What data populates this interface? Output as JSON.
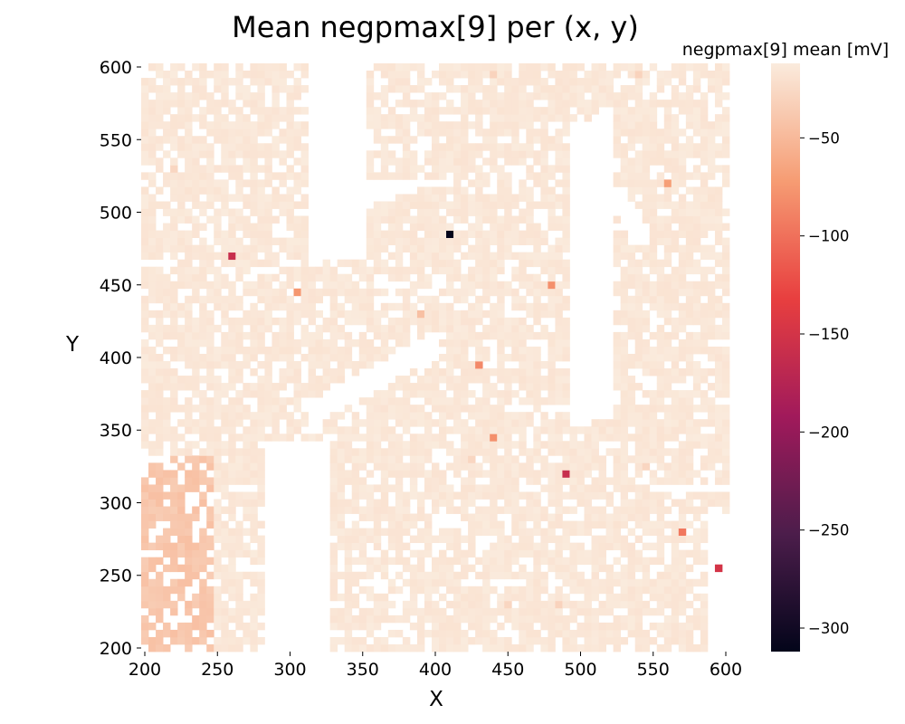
{
  "chart_data": {
    "type": "heatmap",
    "title": "Mean negpmax[9] per (x, y)",
    "xlabel": "X",
    "ylabel": "Y",
    "xlim": [
      200,
      600
    ],
    "ylim": [
      200,
      600
    ],
    "x_ticks": [
      "200",
      "250",
      "300",
      "350",
      "400",
      "450",
      "500",
      "550",
      "600"
    ],
    "y_ticks": [
      "200",
      "250",
      "300",
      "350",
      "400",
      "450",
      "500",
      "550",
      "600"
    ],
    "cell_size": 5,
    "colorbar": {
      "label": "negpmax[9] mean [mV]",
      "min": -312,
      "max": -12,
      "ticks": [
        "−50",
        "−100",
        "−150",
        "−200",
        "−250",
        "−300"
      ],
      "tick_values": [
        -50,
        -100,
        -150,
        -200,
        -250,
        -300
      ],
      "colormap": "rocket",
      "stops": [
        "#03051a",
        "#4c1d4b",
        "#a11a5b",
        "#e83f3f",
        "#f69c73",
        "#faebdd"
      ]
    },
    "background_value": -15,
    "regions": [
      {
        "name": "lower-left",
        "x_range": [
          200,
          245
        ],
        "y_range": [
          200,
          330
        ],
        "value": -40
      }
    ],
    "outliers": [
      {
        "x": 410,
        "y": 485,
        "value": -312
      },
      {
        "x": 260,
        "y": 470,
        "value": -160
      },
      {
        "x": 490,
        "y": 320,
        "value": -160
      },
      {
        "x": 595,
        "y": 255,
        "value": -150
      },
      {
        "x": 570,
        "y": 280,
        "value": -95
      },
      {
        "x": 560,
        "y": 520,
        "value": -70
      },
      {
        "x": 305,
        "y": 445,
        "value": -75
      },
      {
        "x": 480,
        "y": 450,
        "value": -80
      },
      {
        "x": 430,
        "y": 395,
        "value": -85
      },
      {
        "x": 440,
        "y": 345,
        "value": -80
      },
      {
        "x": 390,
        "y": 430,
        "value": -45
      },
      {
        "x": 540,
        "y": 595,
        "value": -30
      },
      {
        "x": 440,
        "y": 595,
        "value": -30
      },
      {
        "x": 220,
        "y": 530,
        "value": -28
      },
      {
        "x": 425,
        "y": 330,
        "value": -28
      },
      {
        "x": 545,
        "y": 325,
        "value": -28
      },
      {
        "x": 450,
        "y": 230,
        "value": -28
      },
      {
        "x": 485,
        "y": 230,
        "value": -30
      }
    ]
  }
}
